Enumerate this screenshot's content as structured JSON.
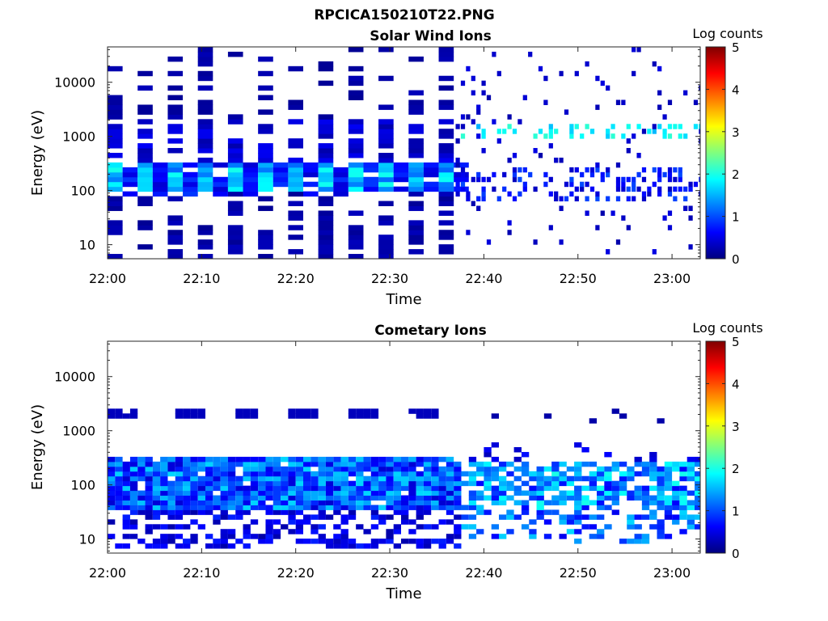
{
  "figure_title": "RPCICA150210T22.PNG",
  "colors": {
    "colormap": [
      "#00007f",
      "#0000ff",
      "#007fff",
      "#00ffff",
      "#7fff7f",
      "#ffff00",
      "#ff7f00",
      "#ff0000",
      "#7f0000"
    ],
    "axis": "#262626"
  },
  "chart_data": [
    {
      "type": "heatmap",
      "title": "Solar Wind Ions",
      "xlabel": "Time",
      "ylabel": "Energy (eV)",
      "y_scale": "log",
      "ylim": [
        5.5,
        45000
      ],
      "xlim": [
        "22:00",
        "23:03"
      ],
      "x_ticks": [
        "22:00",
        "22:10",
        "22:20",
        "22:30",
        "22:40",
        "22:50",
        "23:00"
      ],
      "y_ticks": [
        "10",
        "100",
        "1000",
        "10000"
      ],
      "colorbar": {
        "label": "Log counts",
        "range": [
          0,
          5
        ],
        "ticks": [
          "0",
          "1",
          "2",
          "3",
          "4",
          "5"
        ]
      },
      "grid": false,
      "blocks_solid": [
        {
          "t": [
            0,
            1.6
          ],
          "e": [
            95,
            300
          ],
          "v": 1.4
        },
        {
          "t": [
            3.2,
            4.8
          ],
          "e": [
            95,
            300
          ],
          "v": 1.6
        },
        {
          "t": [
            6.3,
            7.9
          ],
          "e": [
            95,
            300
          ],
          "v": 1.5
        },
        {
          "t": [
            9.6,
            11.2
          ],
          "e": [
            95,
            300
          ],
          "v": 1.8
        },
        {
          "t": [
            12.7,
            14.3
          ],
          "e": [
            95,
            300
          ],
          "v": 1.6
        },
        {
          "t": [
            15.9,
            17.4
          ],
          "e": [
            95,
            300
          ],
          "v": 1.7
        },
        {
          "t": [
            19.2,
            20.7
          ],
          "e": [
            95,
            300
          ],
          "v": 1.5
        },
        {
          "t": [
            22.4,
            23.9
          ],
          "e": [
            95,
            300
          ],
          "v": 1.4
        },
        {
          "t": [
            25.6,
            27.1
          ],
          "e": [
            95,
            300
          ],
          "v": 1.2
        },
        {
          "t": [
            28.8,
            30.4
          ],
          "e": [
            95,
            300
          ],
          "v": 1.1
        },
        {
          "t": [
            31.9,
            33.5
          ],
          "e": [
            95,
            300
          ],
          "v": 1.0
        },
        {
          "t": [
            35.1,
            36.6
          ],
          "e": [
            95,
            300
          ],
          "v": 0.9
        }
      ]
    },
    {
      "type": "heatmap",
      "title": "Cometary Ions",
      "xlabel": "Time",
      "ylabel": "Energy (eV)",
      "y_scale": "log",
      "ylim": [
        5.5,
        45000
      ],
      "xlim": [
        "22:00",
        "23:03"
      ],
      "x_ticks": [
        "22:00",
        "22:10",
        "22:20",
        "22:30",
        "22:40",
        "22:50",
        "23:00"
      ],
      "y_ticks": [
        "10",
        "100",
        "1000",
        "10000"
      ],
      "colorbar": {
        "label": "Log counts",
        "range": [
          0,
          5
        ],
        "ticks": [
          "0",
          "1",
          "2",
          "3",
          "4",
          "5"
        ]
      },
      "grid": false
    }
  ]
}
